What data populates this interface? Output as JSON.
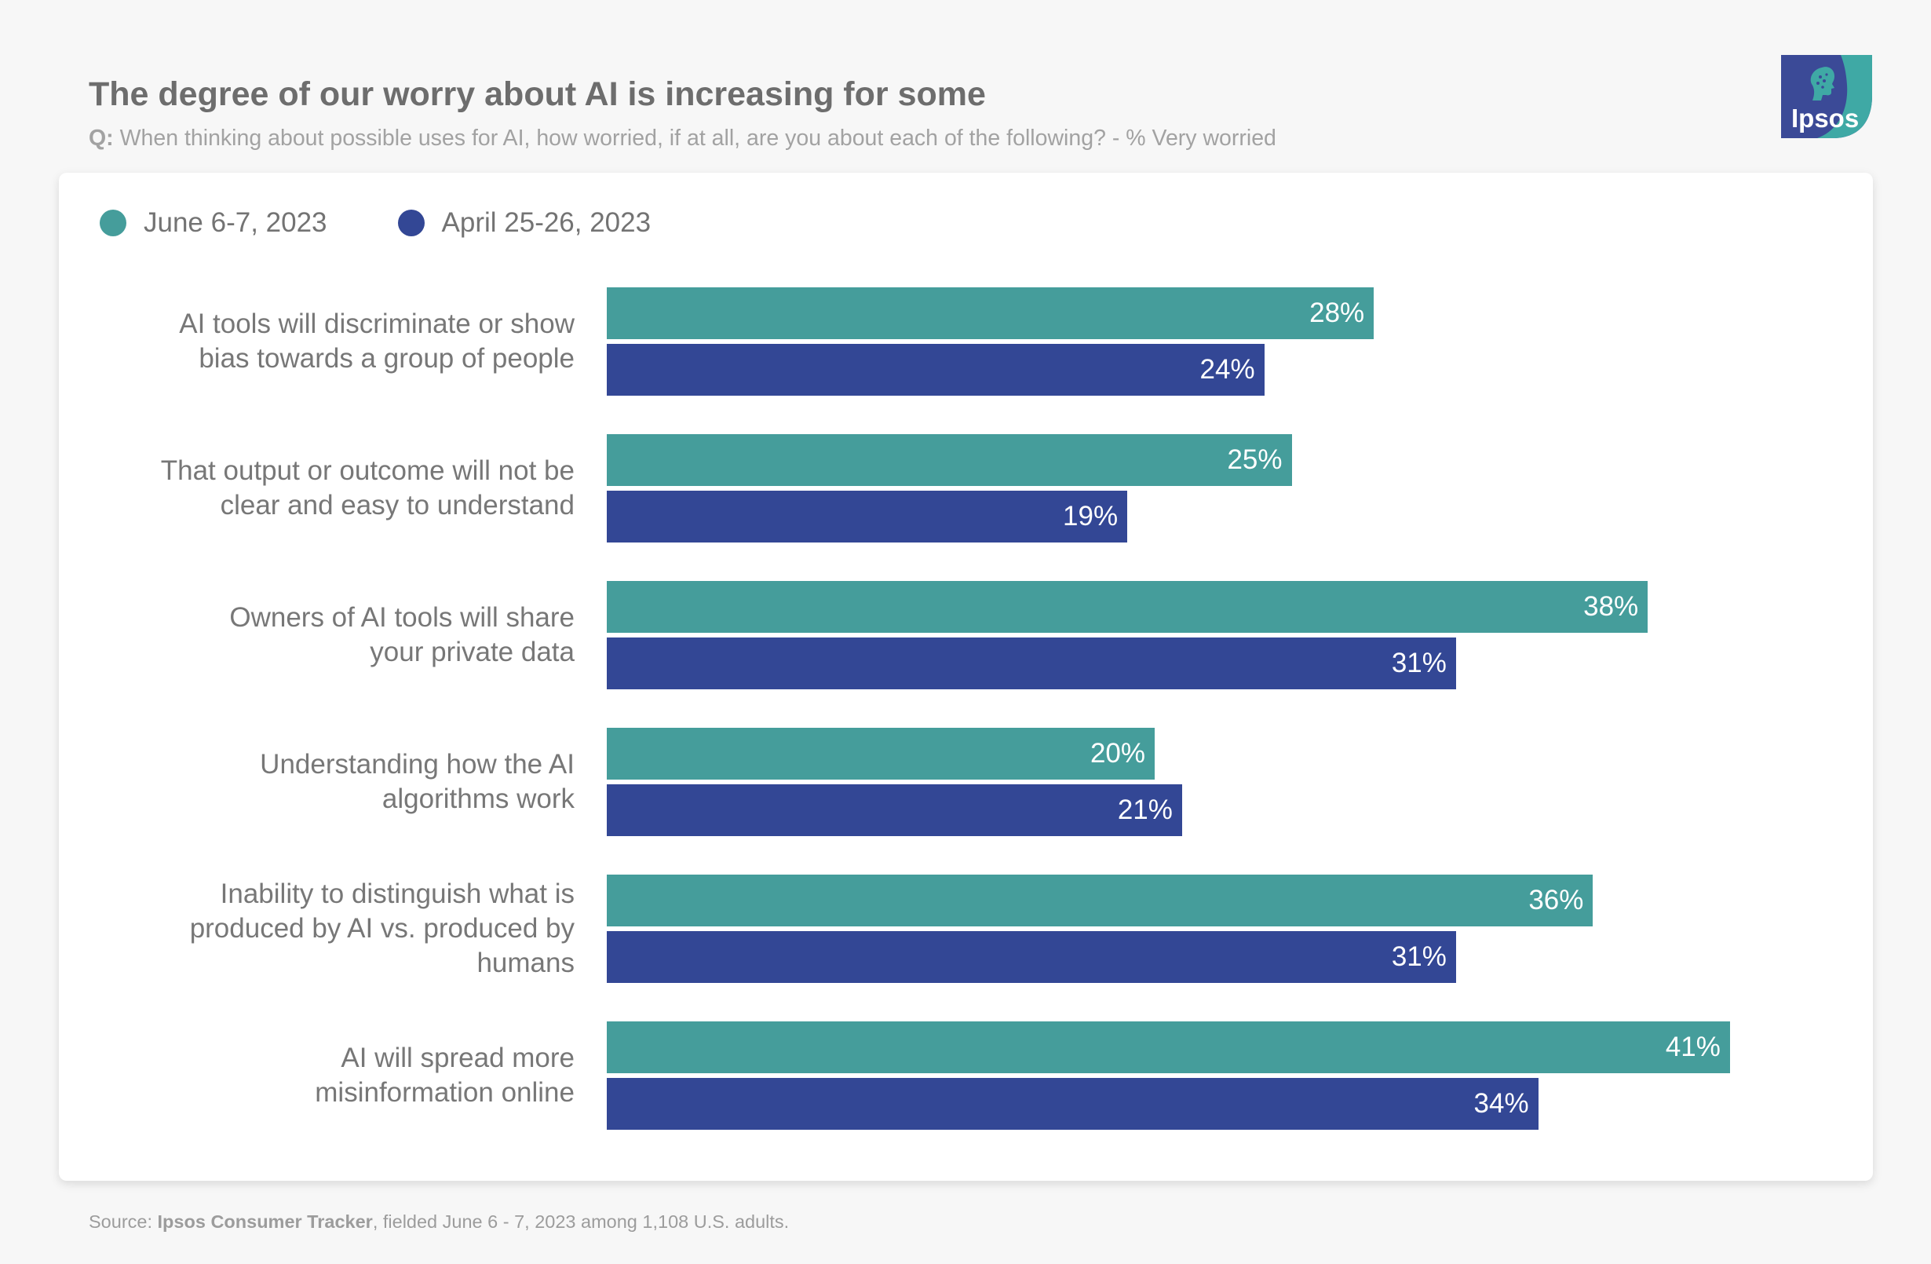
{
  "header": {
    "title": "The degree of our worry about AI is increasing for some",
    "q_prefix": "Q:",
    "question": "When thinking about possible uses for AI, how worried, if at all, are you about each of the following?  - % Very worried"
  },
  "logo": {
    "text": "Ipsos"
  },
  "colors": {
    "june": "#459d9b",
    "april": "#334795",
    "logo_bg": "#3b4a97",
    "logo_accent": "#3fa9a5"
  },
  "chart_data": {
    "type": "bar",
    "orientation": "horizontal",
    "title": "The degree of our worry about AI is increasing for some",
    "categories": [
      "AI tools will discriminate or show bias towards a group of people",
      "That output or outcome will not be clear and easy to understand",
      "Owners of AI tools will share your private data",
      "Understanding how the AI algorithms work",
      "Inability to distinguish what is produced by AI vs. produced by humans",
      "AI will spread more misinformation online"
    ],
    "category_lines": [
      [
        "AI tools will discriminate or show",
        "bias towards a group of people"
      ],
      [
        "That output or outcome will not be",
        "clear and easy to understand"
      ],
      [
        "Owners of AI tools will share",
        "your private data"
      ],
      [
        "Understanding how the AI",
        "algorithms work"
      ],
      [
        "Inability to distinguish what is",
        "produced by AI vs. produced by",
        "humans"
      ],
      [
        "AI will spread more",
        "misinformation online"
      ]
    ],
    "series": [
      {
        "name": "June 6-7, 2023",
        "values": [
          28,
          25,
          38,
          20,
          36,
          41
        ],
        "labels": [
          "28%",
          "25%",
          "38%",
          "20%",
          "36%",
          "41%"
        ]
      },
      {
        "name": "April 25-26, 2023",
        "values": [
          24,
          19,
          31,
          21,
          31,
          34
        ],
        "labels": [
          "24%",
          "19%",
          "31%",
          "21%",
          "31%",
          "34%"
        ]
      }
    ],
    "unit": "%",
    "xlim": [
      0,
      100
    ],
    "legend_position": "top-left",
    "grid": false
  },
  "footer": {
    "prefix": "Source: ",
    "source_bold": "Ipsos Consumer Tracker",
    "rest": ", fielded June 6 - 7, 2023 among 1,108 U.S. adults."
  }
}
